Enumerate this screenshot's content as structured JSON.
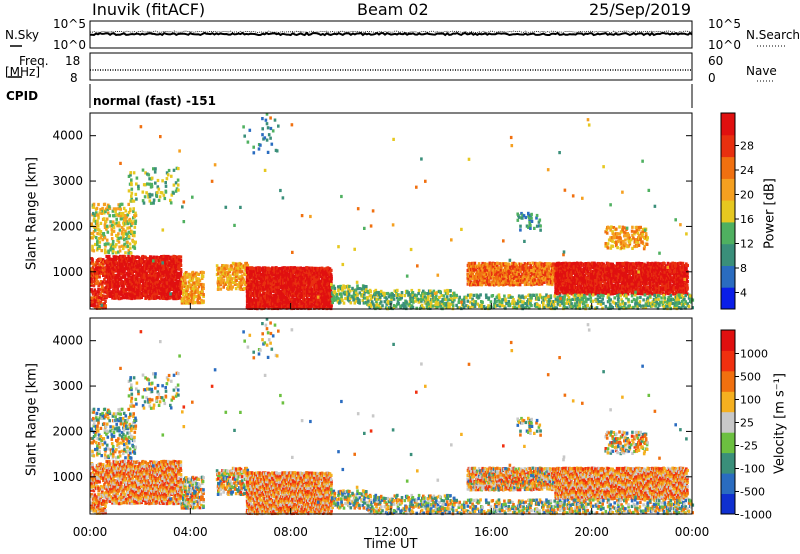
{
  "header": {
    "station": "Inuvik (fitACF)",
    "beam": "Beam 02",
    "date": "25/Sep/2019"
  },
  "top_panels": {
    "nsky_label": "N.Sky",
    "nsky_ticks": [
      "10^5",
      "10^0"
    ],
    "nsearch_label": "N.Search",
    "nsearch_ticks": [
      "10^5",
      "10^0"
    ],
    "freq_label": "Freq.",
    "freq_unit": "[MHz]",
    "freq_ticks": [
      "18",
      "8"
    ],
    "nave_label": "Nave",
    "nave_ticks": [
      "60",
      "0"
    ],
    "cpid_label": "CPID",
    "cpid_value": "normal (fast) -151"
  },
  "colors": {
    "power_scale": [
      "#0a1ee8",
      "#2a6cc0",
      "#3a8f7a",
      "#4fb060",
      "#e6c820",
      "#f5a020",
      "#f07010",
      "#e83010",
      "#e01010"
    ],
    "velocity_scale": [
      "#1030d0",
      "#2a6cc0",
      "#3a8f7a",
      "#6cc040",
      "#c8c8c8",
      "#f5b020",
      "#f07010",
      "#f03010",
      "#e01010"
    ]
  },
  "chart_data": [
    {
      "type": "heatmap",
      "title": "Power",
      "ylabel": "Slant Range [km]",
      "ylim": [
        180,
        4500
      ],
      "y_ticks": [
        "4000",
        "3000",
        "2000",
        "1000"
      ],
      "colorbar_label": "Power [dB]",
      "colorbar_ticks": [
        "28",
        "24",
        "20",
        "16",
        "12",
        "8",
        "4"
      ],
      "colorbar_range": [
        0,
        30
      ]
    },
    {
      "type": "heatmap",
      "title": "Velocity",
      "xlabel": "Time UT",
      "ylabel": "Slant Range [km]",
      "ylim": [
        180,
        4500
      ],
      "x_ticks": [
        "00:00",
        "04:00",
        "08:00",
        "12:00",
        "16:00",
        "20:00",
        "00:00"
      ],
      "y_ticks": [
        "4000",
        "3000",
        "2000",
        "1000"
      ],
      "colorbar_label": "Velocity [m s⁻¹]",
      "colorbar_ticks": [
        "1000",
        "500",
        "100",
        "25",
        "-25",
        "-100",
        "-500",
        "-1000"
      ]
    }
  ]
}
